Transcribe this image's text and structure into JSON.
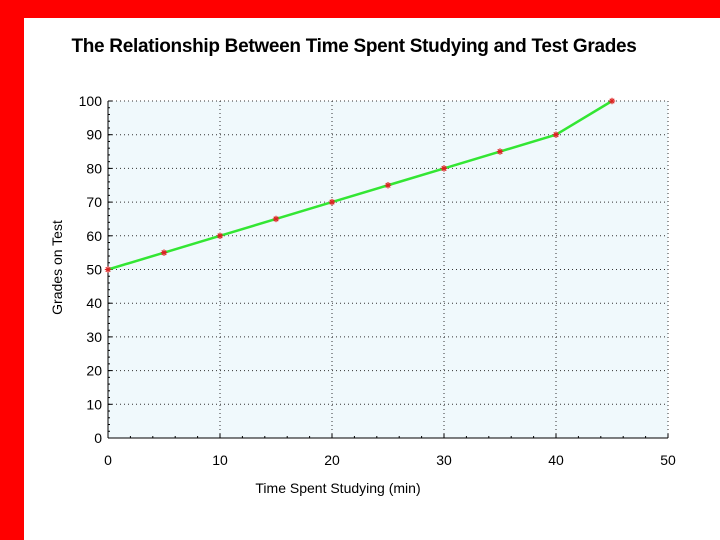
{
  "colors": {
    "frame_red": "#ff0000",
    "plot_bg": "#f0f9fc",
    "line": "#33e633",
    "marker": "#dd2222",
    "grid": "#333333"
  },
  "chart_data": {
    "type": "line",
    "title": "The Relationship Between Time Spent Studying and Test Grades",
    "xlabel": "Time Spent Studying (min)",
    "ylabel": "Grades on Test",
    "x": [
      0,
      5,
      10,
      15,
      20,
      25,
      30,
      35,
      40,
      45
    ],
    "y": [
      50,
      55,
      60,
      65,
      70,
      75,
      80,
      85,
      90,
      100
    ],
    "xlim": [
      0,
      50
    ],
    "ylim": [
      0,
      100
    ],
    "xticks": [
      "0",
      "10",
      "20",
      "30",
      "40",
      "50"
    ],
    "yticks": [
      "0",
      "10",
      "20",
      "30",
      "40",
      "50",
      "60",
      "70",
      "80",
      "90",
      "100"
    ],
    "grid": true,
    "marker": "asterisk"
  }
}
